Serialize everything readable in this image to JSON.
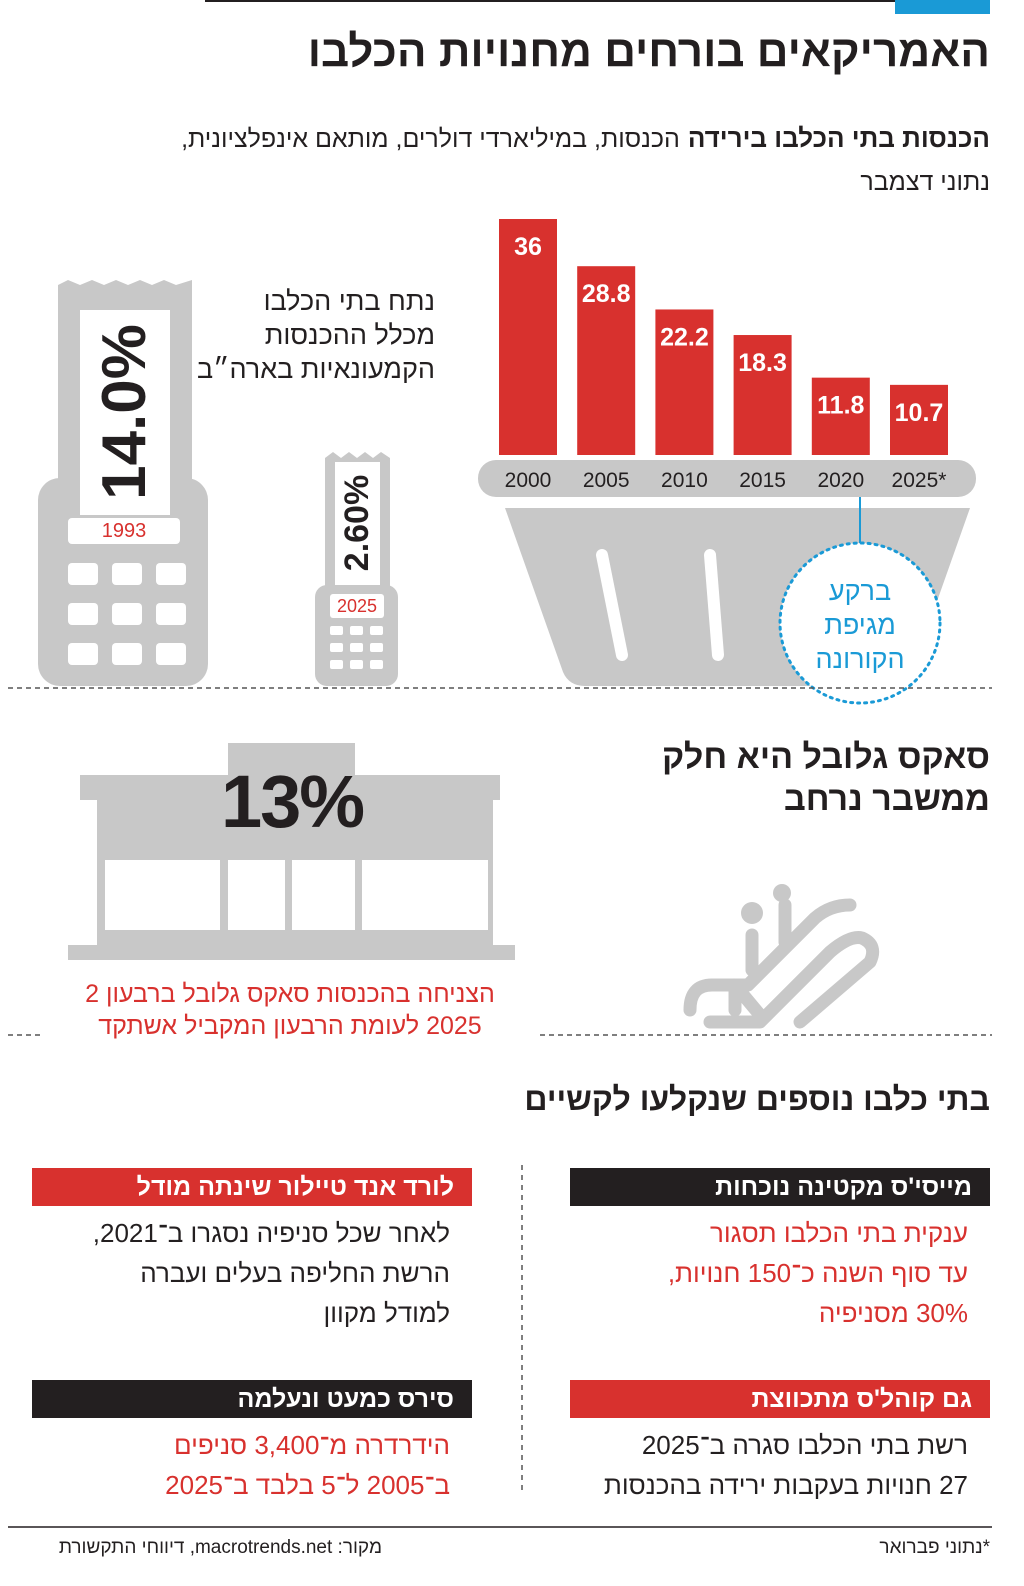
{
  "header": {
    "title": "האמריקאים בורחים מחנויות הכלבו",
    "subtitle_bold": "הכנסות בתי הכלבו בירידה",
    "subtitle_lines": [
      "הכנסות, במיליארדי דולרים, מותאם אינפלציונית,",
      "נתוני דצמבר"
    ]
  },
  "chart_data": {
    "type": "bar",
    "categories": [
      "2000",
      "2005",
      "2010",
      "2015",
      "2020",
      "2025*"
    ],
    "values": [
      36,
      28.8,
      22.2,
      18.3,
      11.8,
      10.7
    ],
    "color": "#d8312e",
    "annotation_lines": [
      "ברקע",
      "מגיפת",
      "הקורונה"
    ]
  },
  "share": {
    "label_lines": [
      "נתח בתי הכלבו",
      "מכלל ההכנסות",
      "הקמעונאיות בארה״ב"
    ],
    "receipts": [
      {
        "value": "14.0%",
        "year": "1993"
      },
      {
        "value": "2.60%",
        "year": "2025"
      }
    ]
  },
  "saks": {
    "heading_lines": [
      "סאקס גלובל היא חלק",
      "ממשבר נרחב"
    ],
    "big_number": "13%",
    "caption_lines": [
      "הצניחה בהכנסות סאקס גלובל ברבעון 2",
      "2025 לעומת הרבעון המקביל אשתקד"
    ]
  },
  "others": {
    "heading": "בתי כלבו נוספים שנקלעו לקשיים",
    "cards": [
      {
        "title": "מייסי'ס מקטינה נוכחות",
        "lines": [
          "ענקית בתי הכלבו תסגור",
          "עד סוף השנה כ־150 חנויות,",
          "30% מסניפיה"
        ]
      },
      {
        "title": "לורד אנד טיילור שינתה מודל",
        "lines": [
          "לאחר שכל סניפיה נסגרו ב־2021,",
          "הרשת החליפה בעלים ועברה",
          "למודל מקוון"
        ]
      },
      {
        "title": "גם קוהל'ס מתכווצת",
        "lines": [
          "רשת בתי הכלבו סגרה ב־2025",
          "27 חנויות בעקבות ירידה בהכנסות"
        ]
      },
      {
        "title": "סירס כמעט ונעלמה",
        "lines": [
          "הידרדרה מ־3,400 סניפים",
          "ב־2005 ל־5 בלבד ב־2025"
        ]
      }
    ]
  },
  "footer": {
    "note": "*נתוני פברואר",
    "source": "מקור: macrotrends.net, דיווחי התקשורת"
  }
}
